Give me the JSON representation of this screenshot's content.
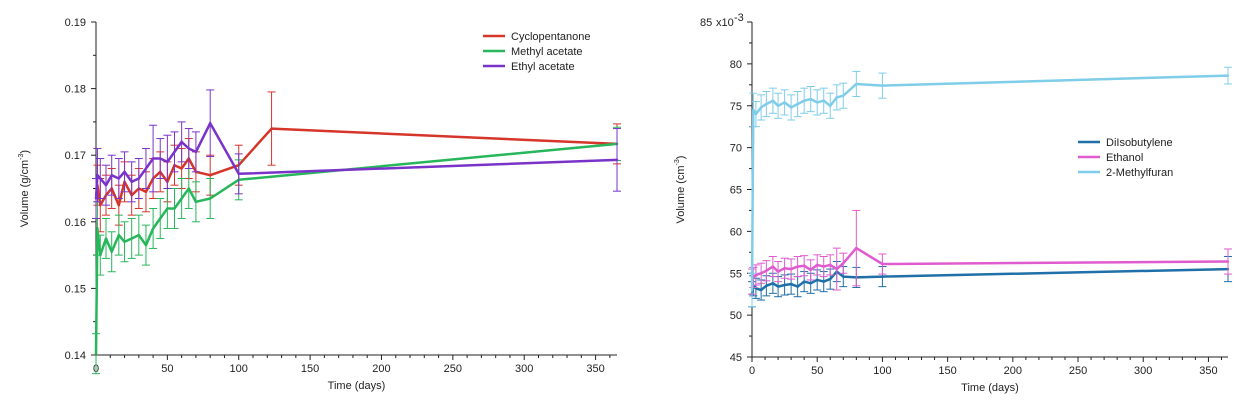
{
  "chart_data": [
    {
      "type": "line",
      "xlabel": "Time (days)",
      "ylabel": "Volume (g/cm",
      "ylabel_sup": "-3",
      "ylabel_close": ")",
      "xlim": [
        0,
        365
      ],
      "ylim": [
        0.14,
        0.19
      ],
      "xticks": [
        0,
        50,
        100,
        150,
        200,
        250,
        300,
        350
      ],
      "yticks": [
        0.14,
        0.15,
        0.16,
        0.17,
        0.18,
        0.19
      ],
      "ytick_labels": [
        "0.14",
        "0.15",
        "0.16",
        "0.17",
        "0.18",
        "0.19"
      ],
      "legend_position": "top-right",
      "series": [
        {
          "name": "Cyclopentanone",
          "color": "#d6352a",
          "x": [
            1,
            3,
            7,
            11,
            16,
            20,
            25,
            30,
            35,
            40,
            45,
            50,
            55,
            60,
            65,
            70,
            80,
            100,
            123,
            365
          ],
          "y": [
            0.1655,
            0.1625,
            0.164,
            0.165,
            0.1625,
            0.166,
            0.164,
            0.165,
            0.1645,
            0.1665,
            0.1675,
            0.166,
            0.1685,
            0.168,
            0.1695,
            0.1675,
            0.167,
            0.1685,
            0.174,
            0.1717
          ],
          "err": [
            0.003,
            0.004,
            0.003,
            0.003,
            0.003,
            0.003,
            0.003,
            0.003,
            0.003,
            0.003,
            0.003,
            0.003,
            0.003,
            0.003,
            0.003,
            0.003,
            0.003,
            0.003,
            0.0055,
            0.003
          ]
        },
        {
          "name": "Methyl acetate",
          "color": "#27b65a",
          "x": [
            0,
            1,
            3,
            7,
            11,
            16,
            20,
            25,
            30,
            35,
            40,
            45,
            50,
            55,
            60,
            65,
            70,
            80,
            100,
            365
          ],
          "y": [
            0.1402,
            0.159,
            0.155,
            0.1575,
            0.1555,
            0.158,
            0.157,
            0.1575,
            0.158,
            0.1565,
            0.159,
            0.1605,
            0.162,
            0.162,
            0.1635,
            0.165,
            0.163,
            0.1635,
            0.1663,
            0.1717
          ],
          "err": [
            0.003,
            0.004,
            0.003,
            0.003,
            0.003,
            0.003,
            0.003,
            0.003,
            0.003,
            0.003,
            0.003,
            0.003,
            0.003,
            0.003,
            0.003,
            0.003,
            0.003,
            0.003,
            0.003,
            0.0025
          ]
        },
        {
          "name": "Ethyl acetate",
          "color": "#7a33c9",
          "x": [
            0,
            1,
            3,
            7,
            11,
            16,
            20,
            25,
            30,
            35,
            40,
            45,
            50,
            55,
            60,
            65,
            70,
            80,
            100,
            365
          ],
          "y": [
            0.1635,
            0.167,
            0.1665,
            0.1655,
            0.167,
            0.1665,
            0.1675,
            0.166,
            0.1665,
            0.168,
            0.1695,
            0.1695,
            0.169,
            0.1705,
            0.172,
            0.171,
            0.1705,
            0.1748,
            0.1672,
            0.1693
          ],
          "err": [
            0.003,
            0.004,
            0.003,
            0.003,
            0.003,
            0.003,
            0.003,
            0.003,
            0.003,
            0.003,
            0.005,
            0.003,
            0.004,
            0.003,
            0.003,
            0.003,
            0.003,
            0.005,
            0.003,
            0.0047
          ]
        }
      ]
    },
    {
      "type": "line",
      "xlabel": "Time (days)",
      "ylabel": "Volume (cm",
      "ylabel_sup": "-3",
      "ylabel_close": ")",
      "scale_note": "x10",
      "scale_note_sup": "-3",
      "xlim": [
        0,
        365
      ],
      "ylim": [
        45,
        85
      ],
      "xticks": [
        0,
        50,
        100,
        150,
        200,
        250,
        300,
        350
      ],
      "yticks": [
        45,
        50,
        55,
        60,
        65,
        70,
        75,
        80,
        85
      ],
      "ytick_labels": [
        "45",
        "50",
        "55",
        "60",
        "65",
        "70",
        "75",
        "80",
        "85"
      ],
      "legend_position": "center-right",
      "series": [
        {
          "name": "DiIsobutylene",
          "color": "#1f6fa8",
          "x": [
            0,
            1,
            3,
            7,
            11,
            16,
            20,
            25,
            30,
            35,
            40,
            45,
            50,
            55,
            60,
            65,
            70,
            80,
            100,
            365
          ],
          "y": [
            52.5,
            53.5,
            53.2,
            53.0,
            53.5,
            53.8,
            53.4,
            53.6,
            53.7,
            53.4,
            54.0,
            53.8,
            54.2,
            54.0,
            54.3,
            55.2,
            54.6,
            54.5,
            54.6,
            55.5
          ],
          "err": [
            1.5,
            1.2,
            1.2,
            1.2,
            1.2,
            1.2,
            1.2,
            1.2,
            1.2,
            1.2,
            1.2,
            1.2,
            1.2,
            1.2,
            1.2,
            1.2,
            1.2,
            1.2,
            1.2,
            1.5
          ]
        },
        {
          "name": "Ethanol",
          "color": "#e05bcf",
          "x": [
            0,
            1,
            3,
            7,
            11,
            16,
            20,
            25,
            30,
            35,
            40,
            45,
            50,
            55,
            60,
            65,
            70,
            80,
            100,
            365
          ],
          "y": [
            54.0,
            54.5,
            54.8,
            55.0,
            55.3,
            55.8,
            55.2,
            55.6,
            55.5,
            55.8,
            55.9,
            55.4,
            56.0,
            55.8,
            56.0,
            55.5,
            56.2,
            58.0,
            56.1,
            56.4
          ],
          "err": [
            1.5,
            1.2,
            1.2,
            1.2,
            1.2,
            1.2,
            1.2,
            1.2,
            1.2,
            1.2,
            1.2,
            1.2,
            1.2,
            1.2,
            1.2,
            2.5,
            1.2,
            4.5,
            1.2,
            1.5
          ]
        },
        {
          "name": "2-Methylfuran",
          "color": "#7fcde8",
          "x": [
            0,
            1,
            3,
            7,
            11,
            16,
            20,
            25,
            30,
            35,
            40,
            45,
            50,
            55,
            60,
            65,
            70,
            80,
            100,
            365
          ],
          "y": [
            53.0,
            74.5,
            74.0,
            74.8,
            75.2,
            75.6,
            75.0,
            75.4,
            74.8,
            75.2,
            75.6,
            75.8,
            75.4,
            75.6,
            75.0,
            76.0,
            76.2,
            77.6,
            77.4,
            78.6
          ],
          "err": [
            2.0,
            2.0,
            1.5,
            1.5,
            1.5,
            1.5,
            1.5,
            1.5,
            1.5,
            1.5,
            1.5,
            1.5,
            1.5,
            1.5,
            1.5,
            1.5,
            1.5,
            1.5,
            1.5,
            1.0
          ]
        }
      ]
    }
  ]
}
